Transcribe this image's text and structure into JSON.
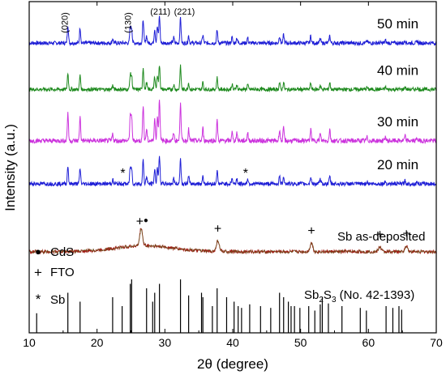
{
  "chart_data": {
    "type": "line",
    "xlabel": "2θ (degree)",
    "ylabel": "Intensity (a.u.)",
    "xlim": [
      10,
      70
    ],
    "xticks": [
      "10",
      "20",
      "30",
      "40",
      "50",
      "60",
      "70"
    ],
    "y_axis_ticks": false,
    "series": [
      {
        "name": "50 min",
        "color": "#1f1fd6",
        "baseline": 0.875,
        "noise": 0.012,
        "peak_scale": 0.11
      },
      {
        "name": "40 min",
        "color": "#1e8a1e",
        "baseline": 0.735,
        "noise": 0.011,
        "peak_scale": 0.1
      },
      {
        "name": "30 min",
        "color": "#cc33dd",
        "baseline": 0.58,
        "noise": 0.014,
        "peak_scale": 0.17
      },
      {
        "name": "20 min",
        "color": "#1f1fd6",
        "baseline": 0.45,
        "noise": 0.012,
        "peak_scale": 0.11
      },
      {
        "name": "Sb as-deposited",
        "color": "#a02018",
        "baseline": 0.245,
        "noise": 0.01,
        "peak_scale": 0.06
      }
    ],
    "sb2s3_peaks": [
      [
        15.7,
        0.45
      ],
      [
        17.5,
        0.35
      ],
      [
        22.3,
        0.4
      ],
      [
        23.7,
        0.3
      ],
      [
        24.9,
        0.55
      ],
      [
        25.1,
        0.6
      ],
      [
        27.3,
        0.5
      ],
      [
        28.2,
        0.35
      ],
      [
        28.5,
        0.45
      ],
      [
        29.2,
        0.55
      ],
      [
        32.3,
        0.6
      ],
      [
        33.5,
        0.42
      ],
      [
        35.4,
        0.45
      ],
      [
        35.6,
        0.4
      ],
      [
        37.0,
        0.3
      ],
      [
        37.7,
        0.5
      ],
      [
        39.1,
        0.4
      ],
      [
        40.2,
        0.35
      ],
      [
        40.8,
        0.3
      ],
      [
        41.3,
        0.28
      ],
      [
        42.5,
        0.32
      ],
      [
        44.1,
        0.3
      ],
      [
        45.6,
        0.28
      ],
      [
        46.9,
        0.45
      ],
      [
        47.5,
        0.4
      ],
      [
        48.2,
        0.35
      ],
      [
        48.6,
        0.3
      ],
      [
        49.1,
        0.3
      ],
      [
        49.9,
        0.28
      ],
      [
        51.2,
        0.3
      ],
      [
        52.1,
        0.25
      ],
      [
        52.9,
        0.32
      ],
      [
        53.2,
        0.4
      ],
      [
        54.1,
        0.33
      ],
      [
        56.1,
        0.3
      ],
      [
        58.8,
        0.28
      ],
      [
        59.7,
        0.25
      ],
      [
        62.6,
        0.3
      ],
      [
        63.6,
        0.28
      ],
      [
        64.5,
        0.3
      ],
      [
        64.9,
        0.26
      ],
      [
        11.1,
        0.22
      ]
    ],
    "measured_peaks": [
      [
        15.7,
        0.5
      ],
      [
        17.5,
        0.42
      ],
      [
        22.3,
        0.12
      ],
      [
        24.9,
        0.45
      ],
      [
        25.1,
        0.4
      ],
      [
        26.8,
        0.65
      ],
      [
        27.3,
        0.2
      ],
      [
        28.5,
        0.4
      ],
      [
        28.9,
        0.45
      ],
      [
        29.2,
        0.75
      ],
      [
        31.3,
        0.15
      ],
      [
        32.3,
        0.7
      ],
      [
        33.5,
        0.2
      ],
      [
        35.6,
        0.22
      ],
      [
        37.7,
        0.35
      ],
      [
        39.9,
        0.15
      ],
      [
        40.6,
        0.15
      ],
      [
        42.2,
        0.15
      ],
      [
        46.9,
        0.2
      ],
      [
        47.5,
        0.22
      ],
      [
        51.5,
        0.2
      ],
      [
        52.9,
        0.12
      ],
      [
        54.3,
        0.2
      ],
      [
        59.8,
        0.06
      ],
      [
        62.5,
        0.07
      ],
      [
        65.4,
        0.08
      ],
      [
        67.2,
        0.05
      ]
    ],
    "as_deposited_peaks": [
      [
        26.5,
        0.9
      ],
      [
        37.8,
        0.55
      ],
      [
        51.6,
        0.45
      ],
      [
        61.7,
        0.25
      ],
      [
        65.6,
        0.3
      ]
    ],
    "hkl_labels": [
      {
        "label": "(020)",
        "x": 15.7
      },
      {
        "label": "(130)",
        "x": 25.0
      },
      {
        "label": "(211)",
        "x": 29.2
      },
      {
        "label": "(221)",
        "x": 32.4
      }
    ],
    "markers": [
      {
        "symbol": "*",
        "x": 23.8,
        "series": "20 min"
      },
      {
        "symbol": "*",
        "x": 41.9,
        "series": "20 min"
      },
      {
        "symbol": "●",
        "x": 27.2,
        "series": "Sb as-deposited"
      },
      {
        "symbol": "+",
        "x": 26.3,
        "series": "Sb as-deposited"
      },
      {
        "symbol": "+",
        "x": 37.8,
        "series": "Sb as-deposited"
      },
      {
        "symbol": "+",
        "x": 51.6,
        "series": "Sb as-deposited"
      },
      {
        "symbol": "+",
        "x": 61.7,
        "series": "Sb as-deposited"
      },
      {
        "symbol": "+",
        "x": 65.6,
        "series": "Sb as-deposited"
      }
    ],
    "legend": [
      {
        "symbol": "●",
        "label": "CdS"
      },
      {
        "symbol": "+",
        "label": "FTO"
      },
      {
        "symbol": "*",
        "label": "Sb"
      }
    ],
    "reference_label_main": "Sb",
    "reference_label_sub1": "2",
    "reference_label_mid": "S",
    "reference_label_sub2": "3",
    "reference_label_tail": " (No. 42-1393)"
  }
}
